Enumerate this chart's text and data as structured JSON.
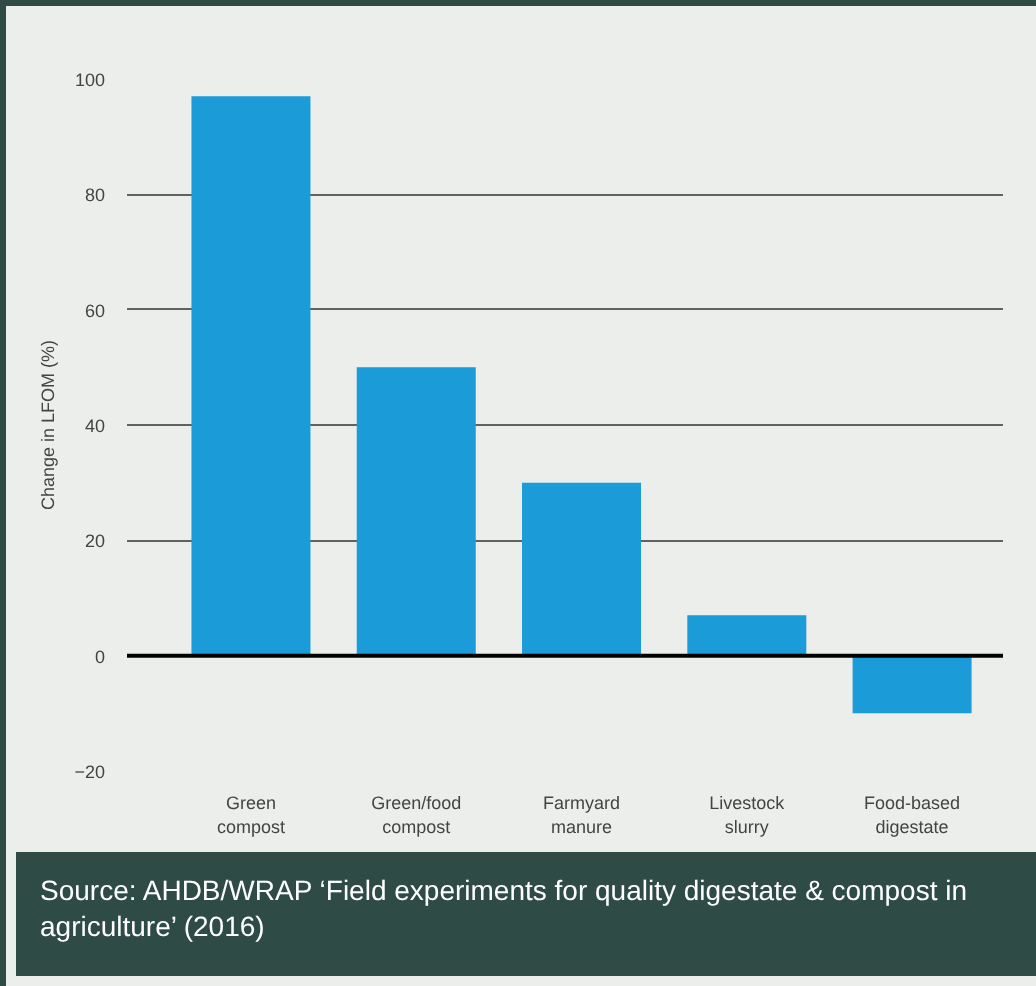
{
  "chart_data": {
    "type": "bar",
    "ylabel": "Change in LFOM (%)",
    "categories": [
      "Green compost",
      "Green/food compost",
      "Farmyard manure",
      "Livestock slurry",
      "Food-based digestate"
    ],
    "values": [
      97,
      50,
      30,
      7,
      -10
    ],
    "color": "#1b9bd7",
    "ylim": [
      -20,
      100
    ],
    "yticks": [
      -20,
      0,
      20,
      40,
      60,
      80,
      100
    ],
    "grid": "y",
    "ref_lines": [
      {
        "axis": "y",
        "value": 0
      }
    ],
    "annotations": [
      "Source: AHDB/WRAP ‘Field experiments for quality digestate & compost in agriculture’ (2016)"
    ]
  }
}
